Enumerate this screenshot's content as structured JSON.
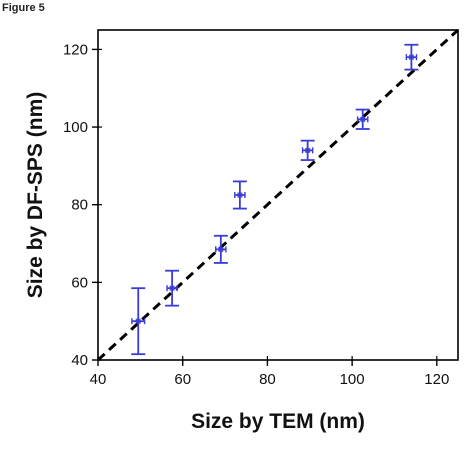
{
  "figure_label": "Figure 5",
  "chart_data": {
    "type": "scatter",
    "title": "",
    "xlabel": "Size by TEM (nm)",
    "ylabel": "Size by DF-SPS (nm)",
    "xlim": [
      40,
      125
    ],
    "ylim": [
      40,
      125
    ],
    "xticks": [
      40,
      60,
      80,
      100,
      120
    ],
    "yticks": [
      40,
      60,
      80,
      100,
      120
    ],
    "grid": false,
    "legend": "none",
    "series": [
      {
        "x": [
          49.5,
          57.5,
          69,
          73.5,
          89.5,
          102.5,
          114
        ],
        "y": [
          50,
          58.5,
          68.5,
          82.5,
          94,
          102,
          118
        ],
        "x_err": [
          1.5,
          1.2,
          1.2,
          1.2,
          1.2,
          1.2,
          1.2
        ],
        "y_err": [
          8.5,
          4.5,
          3.5,
          3.5,
          2.5,
          2.5,
          3.2
        ]
      }
    ],
    "reference_line": {
      "style": "dashed",
      "x": [
        40,
        125
      ],
      "y": [
        40,
        125
      ]
    },
    "colors": {
      "points": "#3b3bd6",
      "line": "#000000",
      "axes": "#000000"
    }
  }
}
